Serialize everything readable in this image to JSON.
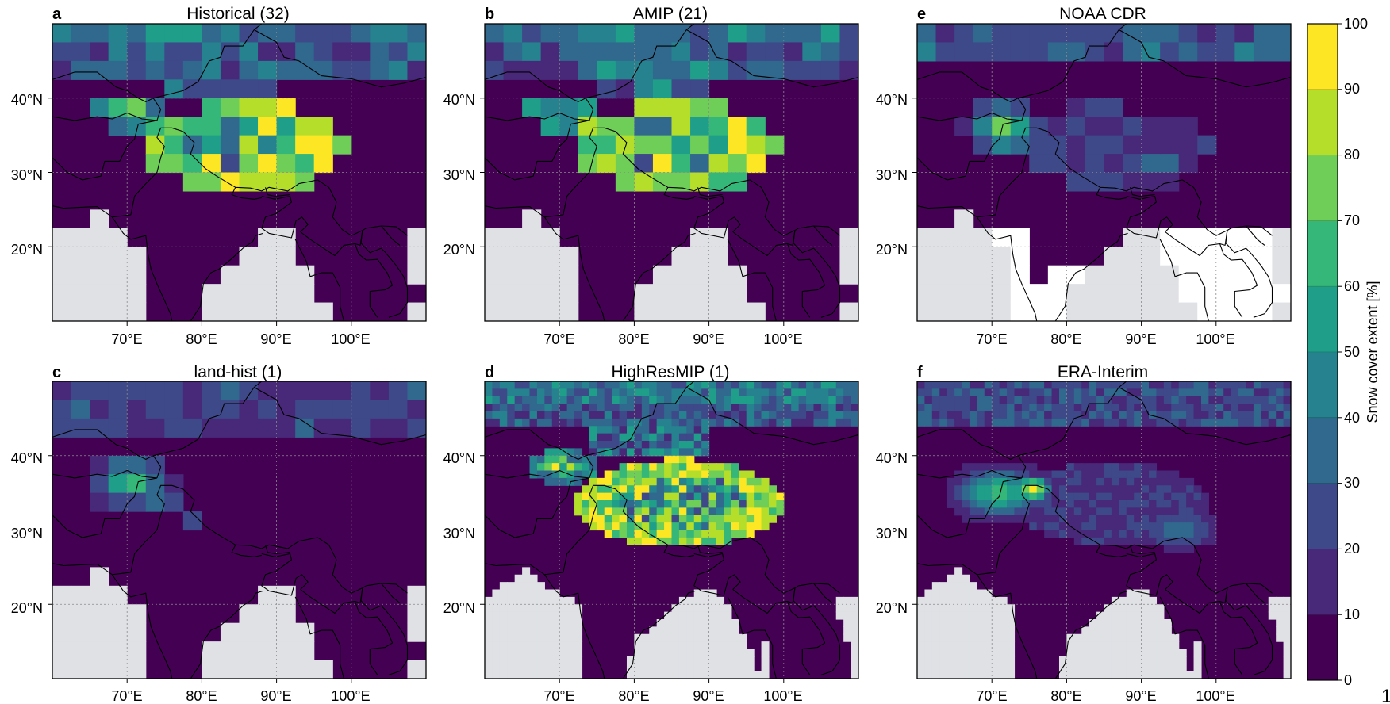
{
  "figure": {
    "colorbar": {
      "label": "Snow cover extent [%]",
      "ticks": [
        "0",
        "10",
        "20",
        "30",
        "40",
        "50",
        "60",
        "70",
        "80",
        "90",
        "100"
      ],
      "range": [
        0,
        100
      ],
      "colors": [
        "#440154",
        "#482878",
        "#3e4989",
        "#31688e",
        "#26828e",
        "#1f9e89",
        "#35b779",
        "#6ece58",
        "#b5de2b",
        "#fde725"
      ]
    },
    "land_ocean_colors": {
      "masked_ocean": "#dfe1e5",
      "no_data_land": "#ffffff"
    },
    "lon_ticks": [
      "70°E",
      "80°E",
      "90°E",
      "100°E"
    ],
    "lat_ticks": [
      "40°N",
      "30°N",
      "20°N"
    ],
    "stray_glyph": "1",
    "panels": [
      {
        "letter": "a",
        "title": "Historical (32)"
      },
      {
        "letter": "b",
        "title": "AMIP (21)"
      },
      {
        "letter": "e",
        "title": "NOAA CDR"
      },
      {
        "letter": "c",
        "title": "land-hist (1)"
      },
      {
        "letter": "d",
        "title": "HighResMIP (1)"
      },
      {
        "letter": "f",
        "title": "ERA-Interim"
      }
    ]
  },
  "chart_data": {
    "type": "heatmap",
    "extent_lon": [
      60,
      110
    ],
    "extent_lat": [
      10,
      50
    ],
    "colorbar_ylabel": "Snow cover extent [%]",
    "colorbar_range": [
      0,
      100
    ],
    "panels": [
      {
        "id": "a",
        "title": "Historical (32)",
        "max_snow_cover_pct": 100
      },
      {
        "id": "b",
        "title": "AMIP (21)",
        "max_snow_cover_pct": 100
      },
      {
        "id": "e",
        "title": "NOAA CDR",
        "max_snow_cover_pct": 70
      },
      {
        "id": "c",
        "title": "land-hist (1)",
        "max_snow_cover_pct": 60
      },
      {
        "id": "d",
        "title": "HighResMIP (1)",
        "max_snow_cover_pct": 100
      },
      {
        "id": "f",
        "title": "ERA-Interim",
        "max_snow_cover_pct": 90
      }
    ]
  }
}
